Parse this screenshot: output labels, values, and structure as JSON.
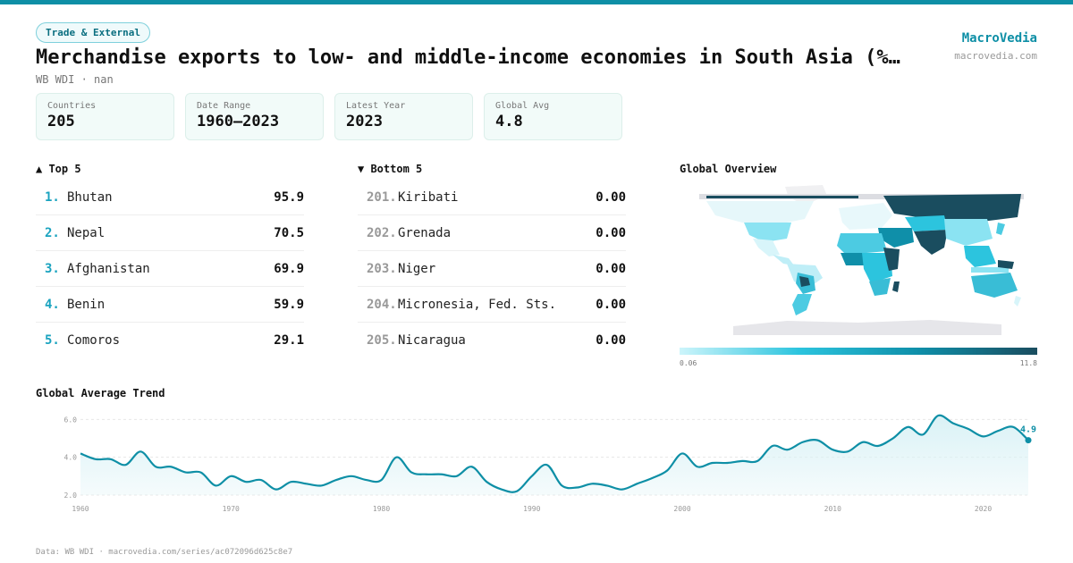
{
  "header": {
    "badge": "Trade & External",
    "title": "Merchandise exports to low- and middle-income economies in South Asia (%…",
    "subtitle": "WB WDI · nan",
    "brand": "MacroVedia",
    "brand_url": "macrovedia.com"
  },
  "stats": [
    {
      "label": "Countries",
      "value": "205"
    },
    {
      "label": "Date Range",
      "value": "1960–2023"
    },
    {
      "label": "Latest Year",
      "value": "2023"
    },
    {
      "label": "Global Avg",
      "value": "4.8"
    }
  ],
  "top5": {
    "heading": "▲ Top 5",
    "items": [
      {
        "rank": "1.",
        "name": "Bhutan",
        "value": "95.9"
      },
      {
        "rank": "2.",
        "name": "Nepal",
        "value": "70.5"
      },
      {
        "rank": "3.",
        "name": "Afghanistan",
        "value": "69.9"
      },
      {
        "rank": "4.",
        "name": "Benin",
        "value": "59.9"
      },
      {
        "rank": "5.",
        "name": "Comoros",
        "value": "29.1"
      }
    ]
  },
  "bottom5": {
    "heading": "▼ Bottom 5",
    "items": [
      {
        "rank": "201.",
        "name": "Kiribati",
        "value": "0.00"
      },
      {
        "rank": "202.",
        "name": "Grenada",
        "value": "0.00"
      },
      {
        "rank": "203.",
        "name": "Niger",
        "value": "0.00"
      },
      {
        "rank": "204.",
        "name": "Micronesia, Fed. Sts.",
        "value": "0.00"
      },
      {
        "rank": "205.",
        "name": "Nicaragua",
        "value": "0.00"
      }
    ]
  },
  "map": {
    "heading": "Global Overview",
    "legend_min": "0.06",
    "legend_max": "11.8",
    "colors": [
      "#cdf5fb",
      "#2cc4de",
      "#0f8fa9",
      "#1a4d5f"
    ]
  },
  "trend_heading": "Global Average Trend",
  "footer": "Data: WB WDI · macrovedia.com/series/ac072096d625c8e7",
  "chart_data": {
    "type": "area",
    "title": "Global Average Trend",
    "x": [
      1960,
      1961,
      1962,
      1963,
      1964,
      1965,
      1966,
      1967,
      1968,
      1969,
      1970,
      1971,
      1972,
      1973,
      1974,
      1975,
      1976,
      1977,
      1978,
      1979,
      1980,
      1981,
      1982,
      1983,
      1984,
      1985,
      1986,
      1987,
      1988,
      1989,
      1990,
      1991,
      1992,
      1993,
      1994,
      1995,
      1996,
      1997,
      1998,
      1999,
      2000,
      2001,
      2002,
      2003,
      2004,
      2005,
      2006,
      2007,
      2008,
      2009,
      2010,
      2011,
      2012,
      2013,
      2014,
      2015,
      2016,
      2017,
      2018,
      2019,
      2020,
      2021,
      2022,
      2023
    ],
    "values": [
      4.2,
      3.9,
      3.9,
      3.6,
      4.3,
      3.5,
      3.5,
      3.2,
      3.2,
      2.5,
      3.0,
      2.7,
      2.8,
      2.3,
      2.7,
      2.6,
      2.5,
      2.8,
      3.0,
      2.8,
      2.8,
      4.0,
      3.2,
      3.1,
      3.1,
      3.0,
      3.5,
      2.7,
      2.3,
      2.2,
      3.0,
      3.6,
      2.5,
      2.4,
      2.6,
      2.5,
      2.3,
      2.6,
      2.9,
      3.3,
      4.2,
      3.5,
      3.7,
      3.7,
      3.8,
      3.8,
      4.6,
      4.4,
      4.8,
      4.9,
      4.4,
      4.3,
      4.8,
      4.6,
      5.0,
      5.6,
      5.2,
      6.2,
      5.8,
      5.5,
      5.1,
      5.4,
      5.6,
      4.9
    ],
    "x_ticks": [
      1960,
      1970,
      1980,
      1990,
      2000,
      2010,
      2020
    ],
    "y_ticks": [
      2.0,
      4.0,
      6.0
    ],
    "ylim": [
      2.0,
      6.3
    ],
    "end_label": "4.9",
    "grid": true,
    "colors": {
      "line": "#0e8fa6",
      "fill": "#d8f1f5"
    }
  }
}
